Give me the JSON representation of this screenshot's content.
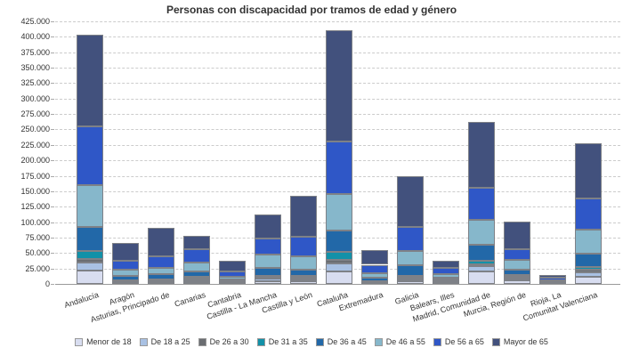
{
  "title": "Personas con discapacidad por tramos de edad y género",
  "colors": {
    "background": "#ffffff",
    "title_text": "#333333",
    "axis_text": "#333333",
    "grid_line": "#cccccc",
    "axis_line": "#999999",
    "segment_border": "#7E8187",
    "legend_swatch_border": "#999999"
  },
  "y_axis": {
    "min": 0,
    "max": 425000,
    "step": 25000,
    "tick_labels": [
      "0",
      "25.000",
      "50.000",
      "75.000",
      "100.000",
      "125.000",
      "150.000",
      "175.000",
      "200.000",
      "225.000",
      "250.000",
      "275.000",
      "300.000",
      "325.000",
      "350.000",
      "375.000",
      "400.000",
      "425.000"
    ]
  },
  "chart_data": {
    "type": "bar",
    "stacked": true,
    "title": "Personas con discapacidad por tramos de edad y género",
    "xlabel": "",
    "ylabel": "",
    "ylim": [
      0,
      425000
    ],
    "grid": true,
    "legend_position": "bottom",
    "categories": [
      "Andalucía",
      "Aragón",
      "Asturias, Principado de",
      "Canarias",
      "Cantabria",
      "Castilla - La Mancha",
      "Castilla y León",
      "Cataluña",
      "Extremadura",
      "Galicia",
      "Balears, Illes",
      "Madrid, Comunidad de",
      "Murcia, Región de",
      "Rioja, La",
      "Comunitat Valenciana"
    ],
    "series": [
      {
        "name": "Menor de 18",
        "color": "#D8DDF0",
        "values": [
          22000,
          2000,
          2000,
          3000,
          1200,
          5000,
          4500,
          20000,
          2000,
          4500,
          3000,
          20000,
          6000,
          1000,
          12000
        ]
      },
      {
        "name": "De 18 a 25",
        "color": "#A9C1E3",
        "values": [
          12000,
          1500,
          1500,
          3000,
          800,
          3000,
          3000,
          13500,
          1000,
          3000,
          1500,
          8500,
          3200,
          500,
          7000
        ]
      },
      {
        "name": "De 26 a 30",
        "color": "#6A6D71",
        "values": [
          7000,
          1500,
          2000,
          2500,
          800,
          2000,
          2500,
          6000,
          1000,
          2500,
          1500,
          3500,
          2400,
          500,
          4500
        ]
      },
      {
        "name": "De 31 a 35",
        "color": "#1291A8",
        "values": [
          13000,
          1500,
          2000,
          3000,
          1200,
          3000,
          3000,
          12500,
          1000,
          3000,
          1000,
          5000,
          2600,
          500,
          4000
        ]
      },
      {
        "name": "De 36 a 45",
        "color": "#2268A8",
        "values": [
          38000,
          6500,
          8000,
          8500,
          3000,
          13000,
          10000,
          35000,
          5000,
          17000,
          3000,
          26000,
          9000,
          2000,
          21500
        ]
      },
      {
        "name": "De 46 a 55",
        "color": "#86B7CB",
        "values": [
          68000,
          10000,
          10500,
          15000,
          5000,
          22000,
          21000,
          58000,
          8000,
          24000,
          6000,
          41000,
          16000,
          2000,
          39000
        ]
      },
      {
        "name": "De 56 a 65",
        "color": "#2F57C7",
        "values": [
          95000,
          14000,
          19000,
          21000,
          8000,
          25000,
          32000,
          85000,
          13000,
          38000,
          10000,
          52000,
          17000,
          3000,
          50000
        ]
      },
      {
        "name": "Mayor de 65",
        "color": "#42517D",
        "values": [
          148000,
          30000,
          46000,
          22000,
          18000,
          40000,
          66000,
          180000,
          24000,
          82000,
          12000,
          106000,
          44000,
          5500,
          90000
        ]
      }
    ],
    "bar_totals": [
      403000,
      67000,
      91000,
      78000,
      38000,
      113000,
      142000,
      410000,
      55000,
      174000,
      38000,
      262000,
      100200,
      15000,
      228000
    ]
  }
}
